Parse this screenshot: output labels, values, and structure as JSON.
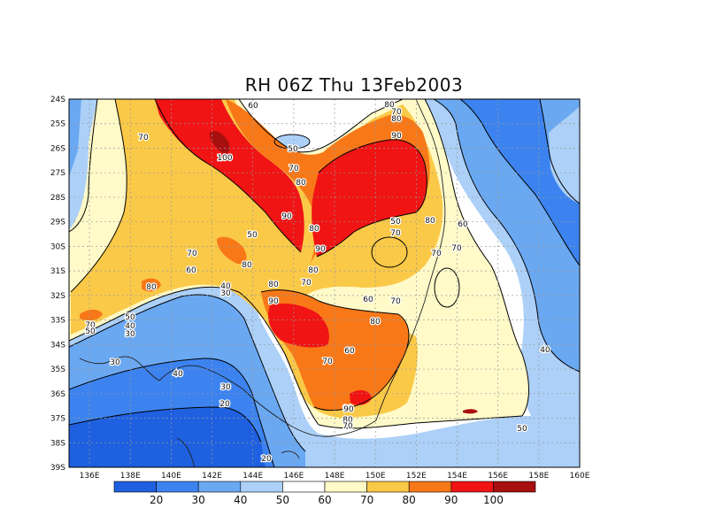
{
  "title": "RH 06Z Thu 13Feb2003",
  "lat_labels": [
    "24S",
    "25S",
    "26S",
    "27S",
    "28S",
    "29S",
    "30S",
    "31S",
    "32S",
    "33S",
    "34S",
    "35S",
    "36S",
    "37S",
    "38S",
    "39S"
  ],
  "lon_labels": [
    "136E",
    "138E",
    "140E",
    "142E",
    "144E",
    "146E",
    "148E",
    "150E",
    "152E",
    "154E",
    "156E",
    "158E",
    "160E"
  ],
  "colorbar": {
    "colors": [
      "#1e60e0",
      "#3c83ef",
      "#6aa8f2",
      "#acd0f8",
      "#ffffff",
      "#fffac8",
      "#fbc948",
      "#f87818",
      "#f01414",
      "#a81010"
    ],
    "labels": [
      "20",
      "30",
      "40",
      "50",
      "60",
      "70",
      "80",
      "90",
      "100"
    ]
  },
  "contour_labels": [
    {
      "text": "60"
    },
    {
      "text": "80"
    },
    {
      "text": "70"
    },
    {
      "text": "80"
    },
    {
      "text": "90"
    },
    {
      "text": "70"
    },
    {
      "text": "50"
    },
    {
      "text": "100"
    },
    {
      "text": "70"
    },
    {
      "text": "80"
    },
    {
      "text": "90"
    },
    {
      "text": "80"
    },
    {
      "text": "50"
    },
    {
      "text": "80"
    },
    {
      "text": "70"
    },
    {
      "text": "60"
    },
    {
      "text": "50"
    },
    {
      "text": "70"
    },
    {
      "text": "70"
    },
    {
      "text": "80"
    },
    {
      "text": "90"
    },
    {
      "text": "70"
    },
    {
      "text": "60"
    },
    {
      "text": "80"
    },
    {
      "text": "40"
    },
    {
      "text": "30"
    },
    {
      "text": "80"
    },
    {
      "text": "60"
    },
    {
      "text": "70"
    },
    {
      "text": "90"
    },
    {
      "text": "80"
    },
    {
      "text": "50"
    },
    {
      "text": "40"
    },
    {
      "text": "30"
    },
    {
      "text": "70"
    },
    {
      "text": "50"
    },
    {
      "text": "80"
    },
    {
      "text": "70"
    },
    {
      "text": "30"
    },
    {
      "text": "40"
    },
    {
      "text": "30"
    },
    {
      "text": "20"
    },
    {
      "text": "20"
    },
    {
      "text": "40"
    },
    {
      "text": "70"
    },
    {
      "text": "60"
    },
    {
      "text": "50"
    },
    {
      "text": "90"
    },
    {
      "text": "80"
    },
    {
      "text": "70"
    },
    {
      "text": "90"
    }
  ]
}
